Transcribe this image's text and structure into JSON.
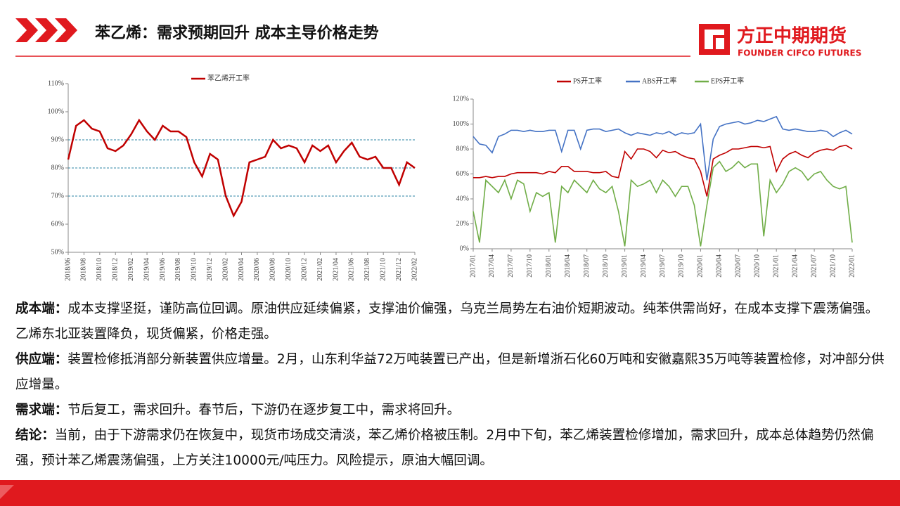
{
  "header": {
    "title": "苯乙烯：需求预期回升  成本主导价格走势",
    "logo_cn": "方正中期期货",
    "logo_en": "FOUNDER CIFCO FUTURES"
  },
  "chart_data": [
    {
      "type": "line",
      "series": [
        {
          "name": "苯乙烯开工率",
          "color": "#c00000",
          "values": [
            83,
            95,
            97,
            94,
            93,
            87,
            86,
            88,
            92,
            97,
            93,
            90,
            95,
            93,
            93,
            91,
            82,
            77,
            85,
            83,
            70,
            63,
            68,
            82,
            83,
            84,
            90,
            87,
            88,
            87,
            82,
            88,
            86,
            88,
            82,
            86,
            89,
            84,
            83,
            84,
            80,
            80,
            74,
            82,
            80
          ]
        }
      ],
      "categories": [
        "2018/06",
        null,
        "2018/08",
        null,
        "2018/10",
        null,
        "2018/12",
        null,
        "2019/02",
        null,
        "2019/04",
        null,
        "2019/06",
        null,
        "2019/08",
        null,
        "2019/10",
        null,
        "2019/12",
        null,
        "2020/02",
        null,
        "2020/04",
        null,
        "2020/06",
        null,
        "2020/08",
        null,
        "2020/10",
        null,
        "2020/12",
        null,
        "2021/02",
        null,
        "2021/04",
        null,
        "2021/06",
        null,
        "2021/08",
        null,
        "2021/10",
        null,
        "2021/12",
        null,
        "2022/02"
      ],
      "ylim": [
        50,
        110
      ],
      "yticks": [
        {
          "value": 50,
          "label": "50%"
        },
        {
          "value": 60,
          "label": "60%"
        },
        {
          "value": 70,
          "label": "70%"
        },
        {
          "value": 80,
          "label": "80%"
        },
        {
          "value": 90,
          "label": "90%"
        },
        {
          "value": 100,
          "label": "100%"
        },
        {
          "value": 110,
          "label": "110%"
        }
      ],
      "reference_lines": [
        70,
        80,
        90
      ],
      "legend": "top"
    },
    {
      "type": "line",
      "series": [
        {
          "name": "PS开工率",
          "color": "#c00000",
          "values": [
            57,
            57,
            58,
            57,
            58,
            58,
            60,
            61,
            61,
            61,
            61,
            60,
            62,
            61,
            66,
            66,
            62,
            62,
            62,
            61,
            61,
            62,
            58,
            57,
            78,
            72,
            80,
            80,
            78,
            73,
            79,
            77,
            78,
            75,
            73,
            72,
            62,
            42,
            72,
            75,
            77,
            80,
            80,
            81,
            82,
            82,
            81,
            82,
            62,
            72,
            76,
            78,
            75,
            73,
            77,
            79,
            80,
            79,
            82,
            83,
            80
          ]
        },
        {
          "name": "ABS开工率",
          "color": "#4472c4",
          "values": [
            90,
            84,
            83,
            77,
            90,
            92,
            95,
            95,
            94,
            95,
            94,
            94,
            95,
            95,
            78,
            95,
            95,
            80,
            95,
            96,
            96,
            94,
            95,
            96,
            93,
            91,
            93,
            92,
            91,
            93,
            92,
            94,
            91,
            93,
            92,
            93,
            100,
            55,
            88,
            98,
            100,
            101,
            102,
            100,
            101,
            103,
            102,
            104,
            106,
            96,
            95,
            96,
            95,
            94,
            94,
            95,
            94,
            90,
            93,
            95,
            92
          ]
        },
        {
          "name": "EPS开工率",
          "color": "#70ad47",
          "values": [
            30,
            5,
            55,
            50,
            45,
            55,
            40,
            55,
            52,
            30,
            45,
            42,
            45,
            5,
            50,
            45,
            55,
            50,
            45,
            55,
            48,
            45,
            50,
            30,
            2,
            55,
            50,
            52,
            55,
            45,
            55,
            50,
            42,
            50,
            50,
            35,
            2,
            35,
            65,
            70,
            62,
            65,
            70,
            65,
            68,
            68,
            10,
            55,
            45,
            52,
            62,
            65,
            62,
            55,
            60,
            62,
            55,
            50,
            48,
            50,
            5
          ]
        }
      ],
      "categories": [
        "2017/01",
        null,
        null,
        "2017/04",
        null,
        null,
        "2017/07",
        null,
        null,
        "2017/10",
        null,
        null,
        "2018/01",
        null,
        null,
        "2018/04",
        null,
        null,
        "2018/07",
        null,
        null,
        "2018/10",
        null,
        null,
        "2019/01",
        null,
        null,
        "2019/04",
        null,
        null,
        "2019/07",
        null,
        null,
        "2019/10",
        null,
        null,
        "2020/01",
        null,
        null,
        "2020/04",
        null,
        null,
        "2020/07",
        null,
        null,
        "2020/10",
        null,
        null,
        "2021/01",
        null,
        null,
        "2021/04",
        null,
        null,
        "2021/07",
        null,
        null,
        "2021/10",
        null,
        null,
        "2022/01"
      ],
      "ylim": [
        0,
        120
      ],
      "yticks": [
        {
          "value": 0,
          "label": "0%"
        },
        {
          "value": 20,
          "label": "20%"
        },
        {
          "value": 40,
          "label": "40%"
        },
        {
          "value": 60,
          "label": "60%"
        },
        {
          "value": 80,
          "label": "80%"
        },
        {
          "value": 100,
          "label": "100%"
        },
        {
          "value": 120,
          "label": "120%"
        }
      ],
      "legend": "top"
    }
  ],
  "paragraphs": [
    {
      "label": "成本端：",
      "text": "成本支撑坚挺，谨防高位回调。原油供应延续偏紧，支撑油价偏强，乌克兰局势左右油价短期波动。纯苯供需尚好，在成本支撑下震荡偏强。乙烯东北亚装置降负，现货偏紧，价格走强。"
    },
    {
      "label": "供应端：",
      "text": "装置检修抵消部分新装置供应增量。2月，山东利华益72万吨装置已产出，但是新增浙石化60万吨和安徽嘉熙35万吨等装置检修，对冲部分供应增量。"
    },
    {
      "label": "需求端：",
      "text": "节后复工，需求回升。春节后，下游仍在逐步复工中，需求将回升。"
    },
    {
      "label": "结论：",
      "text": "当前，由于下游需求仍在恢复中，现货市场成交清淡，苯乙烯价格被压制。2月中下旬，苯乙烯装置检修增加，需求回升，成本总体趋势仍然偏强，预计苯乙烯震荡偏强，上方关注10000元/吨压力。风险提示，原油大幅回调。"
    }
  ]
}
